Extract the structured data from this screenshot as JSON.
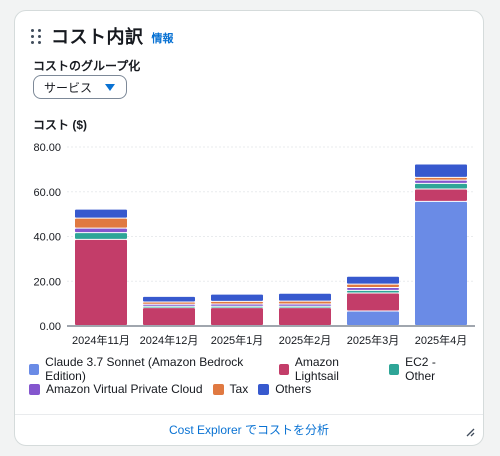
{
  "widget": {
    "title": "コスト内訳",
    "info_link": "情報",
    "group_label": "コストのグループ化",
    "group_select_value": "サービス",
    "cost_label": "コスト ($)",
    "footer_link": "Cost Explorer でコストを分析"
  },
  "colors": {
    "claude": "#6a8be6",
    "lightsail": "#c33d69",
    "ec2": "#2ea597",
    "vpc": "#8456ce",
    "tax": "#e07941",
    "others": "#3759ce"
  },
  "chart_data": {
    "type": "bar",
    "stacked": true,
    "ylabel": "コスト ($)",
    "ylim": [
      0,
      80
    ],
    "yticks": [
      "0.00",
      "20.00",
      "40.00",
      "60.00",
      "80.00"
    ],
    "grid": true,
    "legend_position": "bottom",
    "categories": [
      "2024年11月",
      "2024年12月",
      "2025年1月",
      "2025年2月",
      "2025年3月",
      "2025年4月"
    ],
    "series": [
      {
        "name": "Claude 3.7 Sonnet (Amazon Bedrock Edition)",
        "color_key": "claude",
        "values": [
          0,
          0,
          0,
          0,
          6.5,
          55.5
        ]
      },
      {
        "name": "Amazon Lightsail",
        "color_key": "lightsail",
        "values": [
          38.5,
          8,
          8,
          8,
          8,
          5.5
        ]
      },
      {
        "name": "EC2 - Other",
        "color_key": "ec2",
        "values": [
          3,
          0.6,
          0.6,
          0.6,
          1.2,
          2.5
        ]
      },
      {
        "name": "Amazon Virtual Private Cloud",
        "color_key": "vpc",
        "values": [
          2,
          0.9,
          1,
          1,
          1.3,
          1.5
        ]
      },
      {
        "name": "Tax",
        "color_key": "tax",
        "values": [
          4.5,
          1,
          1.2,
          1.3,
          1.5,
          1.2
        ]
      },
      {
        "name": "Others",
        "color_key": "others",
        "values": [
          4,
          2.5,
          3.2,
          3.5,
          3.5,
          6
        ]
      }
    ]
  }
}
